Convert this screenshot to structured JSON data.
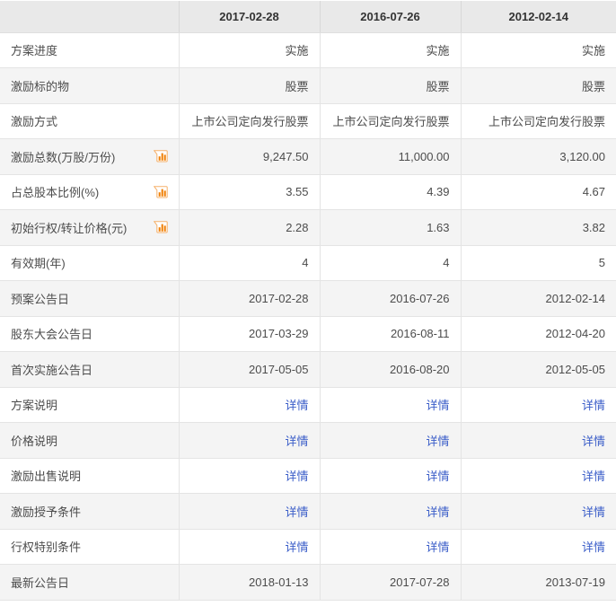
{
  "table": {
    "header": {
      "label_column": "",
      "dates": [
        "2017-02-28",
        "2016-07-26",
        "2012-02-14"
      ]
    },
    "rows": [
      {
        "label": "方案进度",
        "type": "text",
        "icon": null,
        "values": [
          "实施",
          "实施",
          "实施"
        ]
      },
      {
        "label": "激励标的物",
        "type": "text",
        "icon": null,
        "values": [
          "股票",
          "股票",
          "股票"
        ]
      },
      {
        "label": "激励方式",
        "type": "text",
        "icon": null,
        "values": [
          "上市公司定向发行股票",
          "上市公司定向发行股票",
          "上市公司定向发行股票"
        ]
      },
      {
        "label": "激励总数(万股/万份)",
        "type": "text",
        "icon": "bar-chart-icon",
        "values": [
          "9,247.50",
          "11,000.00",
          "3,120.00"
        ]
      },
      {
        "label": "占总股本比例(%)",
        "type": "text",
        "icon": "bar-chart-icon",
        "values": [
          "3.55",
          "4.39",
          "4.67"
        ]
      },
      {
        "label": "初始行权/转让价格(元)",
        "type": "text",
        "icon": "bar-chart-icon",
        "values": [
          "2.28",
          "1.63",
          "3.82"
        ]
      },
      {
        "label": "有效期(年)",
        "type": "text",
        "icon": null,
        "values": [
          "4",
          "4",
          "5"
        ]
      },
      {
        "label": "预案公告日",
        "type": "text",
        "icon": null,
        "values": [
          "2017-02-28",
          "2016-07-26",
          "2012-02-14"
        ]
      },
      {
        "label": "股东大会公告日",
        "type": "text",
        "icon": null,
        "values": [
          "2017-03-29",
          "2016-08-11",
          "2012-04-20"
        ]
      },
      {
        "label": "首次实施公告日",
        "type": "text",
        "icon": null,
        "values": [
          "2017-05-05",
          "2016-08-20",
          "2012-05-05"
        ]
      },
      {
        "label": "方案说明",
        "type": "link",
        "icon": null,
        "values": [
          "详情",
          "详情",
          "详情"
        ]
      },
      {
        "label": "价格说明",
        "type": "link",
        "icon": null,
        "values": [
          "详情",
          "详情",
          "详情"
        ]
      },
      {
        "label": "激励出售说明",
        "type": "link",
        "icon": null,
        "values": [
          "详情",
          "详情",
          "详情"
        ]
      },
      {
        "label": "激励授予条件",
        "type": "link",
        "icon": null,
        "values": [
          "详情",
          "详情",
          "详情"
        ]
      },
      {
        "label": "行权特别条件",
        "type": "link",
        "icon": null,
        "values": [
          "详情",
          "详情",
          "详情"
        ]
      },
      {
        "label": "最新公告日",
        "type": "text",
        "icon": null,
        "values": [
          "2018-01-13",
          "2017-07-28",
          "2013-07-19"
        ]
      }
    ]
  },
  "colors": {
    "header_bg": "#e9e9e9",
    "stripe_bg": "#f4f4f4",
    "border": "#e4e4e4",
    "text": "#4c4c4c",
    "header_text": "#333333",
    "link": "#3a5dc8",
    "icon_border": "#f5b06a",
    "icon_bar": "#f07d00"
  }
}
